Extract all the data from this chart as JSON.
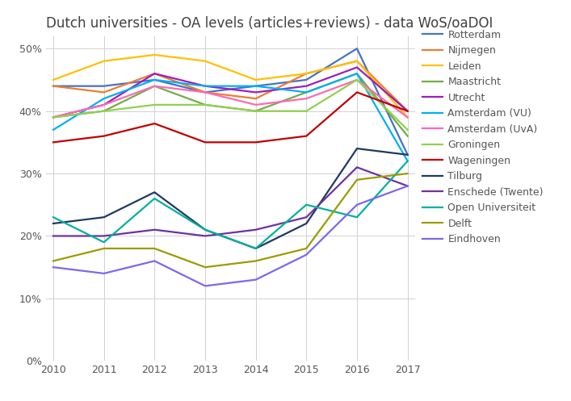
{
  "title": "Dutch universities - OA levels (articles+reviews) - data WoS/oaDOI",
  "years": [
    2010,
    2011,
    2012,
    2013,
    2014,
    2015,
    2016,
    2017
  ],
  "series": [
    {
      "name": "Rotterdam",
      "color": "#4472C4",
      "values": [
        44,
        44,
        45,
        43,
        44,
        45,
        50,
        33
      ]
    },
    {
      "name": "Nijmegen",
      "color": "#ED7D31",
      "values": [
        44,
        43,
        46,
        43,
        42,
        46,
        48,
        40
      ]
    },
    {
      "name": "Leiden",
      "color": "#FFC000",
      "values": [
        45,
        48,
        49,
        48,
        45,
        46,
        48,
        39
      ]
    },
    {
      "name": "Maastricht",
      "color": "#70AD47",
      "values": [
        39,
        40,
        44,
        41,
        40,
        43,
        46,
        36
      ]
    },
    {
      "name": "Utrecht",
      "color": "#9E1DBD",
      "values": [
        39,
        41,
        46,
        44,
        43,
        44,
        47,
        40
      ]
    },
    {
      "name": "Amsterdam (VU)",
      "color": "#00B0F0",
      "values": [
        37,
        42,
        45,
        44,
        44,
        43,
        46,
        32
      ]
    },
    {
      "name": "Amsterdam (UvA)",
      "color": "#FF69B4",
      "values": [
        39,
        41,
        44,
        43,
        41,
        42,
        45,
        39
      ]
    },
    {
      "name": "Groningen",
      "color": "#92D050",
      "values": [
        39,
        40,
        41,
        41,
        40,
        40,
        45,
        37
      ]
    },
    {
      "name": "Wageningen",
      "color": "#C00000",
      "values": [
        35,
        36,
        38,
        35,
        35,
        36,
        43,
        40
      ]
    },
    {
      "name": "Tilburg",
      "color": "#203864",
      "values": [
        22,
        23,
        27,
        21,
        18,
        22,
        34,
        33
      ]
    },
    {
      "name": "Enschede (Twente)",
      "color": "#7030A0",
      "values": [
        20,
        20,
        21,
        20,
        21,
        23,
        31,
        28
      ]
    },
    {
      "name": "Open Universiteit",
      "color": "#00B0A0",
      "values": [
        23,
        19,
        26,
        21,
        18,
        25,
        23,
        32
      ]
    },
    {
      "name": "Delft",
      "color": "#9B9B00",
      "values": [
        16,
        18,
        18,
        15,
        16,
        18,
        29,
        30
      ]
    },
    {
      "name": "Eindhoven",
      "color": "#7B68EE",
      "values": [
        15,
        14,
        16,
        12,
        13,
        17,
        25,
        28
      ]
    }
  ],
  "ylim": [
    0,
    52
  ],
  "yticks": [
    0,
    10,
    20,
    30,
    40,
    50
  ],
  "ytick_labels": [
    "0%",
    "10%",
    "20%",
    "30%",
    "40%",
    "50%"
  ],
  "background_color": "#ffffff",
  "grid_color": "#d0d0d0",
  "title_color": "#404040",
  "title_fontsize": 12,
  "legend_fontsize": 9,
  "tick_fontsize": 9,
  "figsize": [
    7.07,
    4.97
  ],
  "dpi": 100
}
